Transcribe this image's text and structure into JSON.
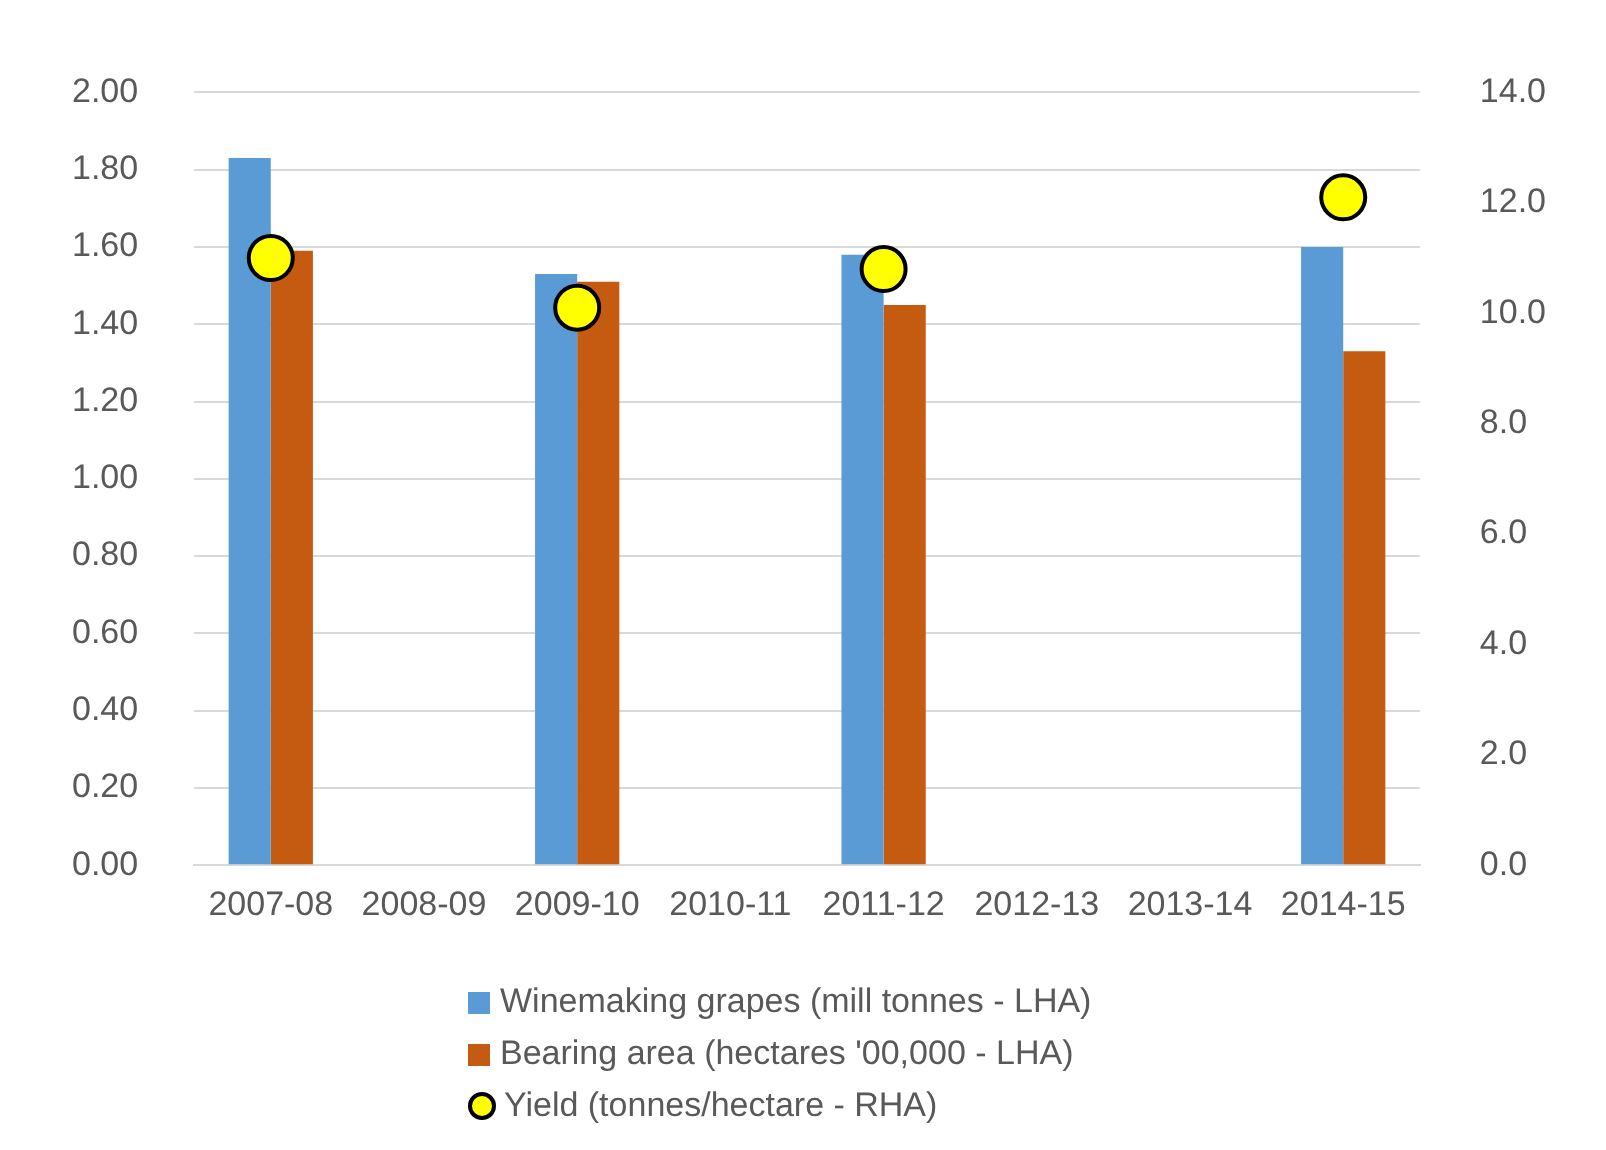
{
  "chart_data": {
    "type": "bar",
    "categories": [
      "2007-08",
      "2008-09",
      "2009-10",
      "2010-11",
      "2011-12",
      "2012-13",
      "2013-14",
      "2014-15"
    ],
    "series": [
      {
        "name": "Winemaking grapes (mill tonnes - LHA)",
        "color": "#5b9bd5",
        "values": [
          1.83,
          null,
          1.53,
          null,
          1.58,
          null,
          null,
          1.6
        ]
      },
      {
        "name": "Bearing area (hectares '00,000  - LHA)",
        "color": "#c55a11",
        "values": [
          1.59,
          null,
          1.51,
          null,
          1.45,
          null,
          null,
          1.33
        ]
      },
      {
        "name": "Yield (tonnes/hectare - RHA)",
        "type": "scatter",
        "axis": "y2",
        "color": "#ffff00",
        "values": [
          11.0,
          null,
          10.1,
          null,
          10.8,
          null,
          null,
          12.1
        ]
      }
    ],
    "ylim": [
      0,
      2
    ],
    "yticks": [
      {
        "value": 0,
        "label": "0.00"
      },
      {
        "value": 0.2,
        "label": "0.20"
      },
      {
        "value": 0.4,
        "label": "0.40"
      },
      {
        "value": 0.6,
        "label": "0.60"
      },
      {
        "value": 0.8,
        "label": "0.80"
      },
      {
        "value": 1,
        "label": "1.00"
      },
      {
        "value": 1.2,
        "label": "1.20"
      },
      {
        "value": 1.4,
        "label": "1.40"
      },
      {
        "value": 1.6,
        "label": "1.60"
      },
      {
        "value": 1.8,
        "label": "1.80"
      },
      {
        "value": 2,
        "label": "2.00"
      }
    ],
    "y2lim": [
      0,
      14
    ],
    "y2ticks": [
      {
        "value": 0,
        "label": "0.0"
      },
      {
        "value": 2,
        "label": "2.0"
      },
      {
        "value": 4,
        "label": "4.0"
      },
      {
        "value": 6,
        "label": "6.0"
      },
      {
        "value": 8,
        "label": "8.0"
      },
      {
        "value": 10,
        "label": "10.0"
      },
      {
        "value": 12,
        "label": "12.0"
      },
      {
        "value": 14,
        "label": "14.0"
      }
    ],
    "grid": "y",
    "legend": "bottom",
    "marker": "circle"
  }
}
